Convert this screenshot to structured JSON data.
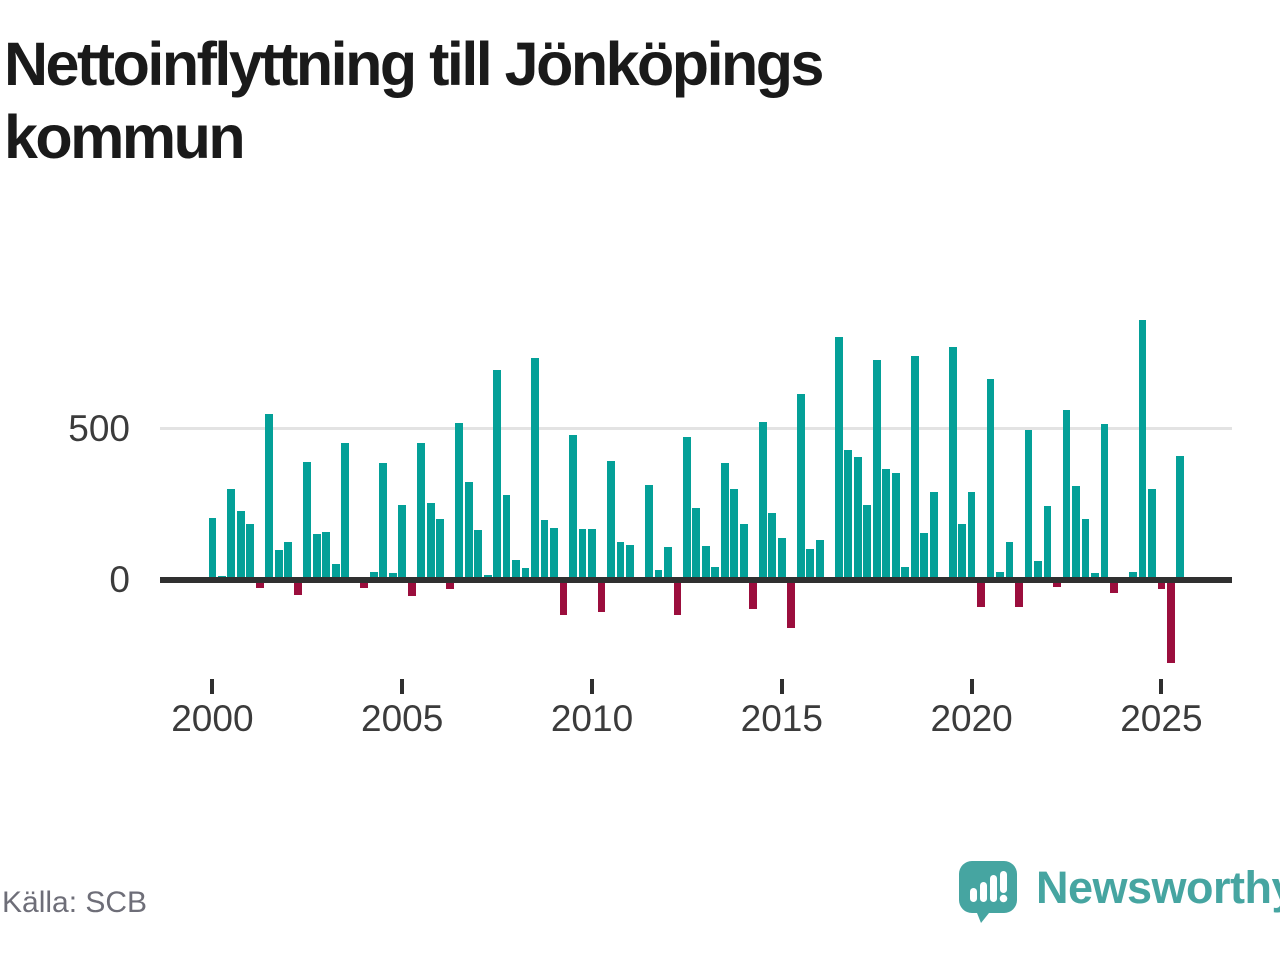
{
  "title": "Nettoinflyttning till Jönköpings kommun",
  "source_note": "Källa: SCB",
  "brand": {
    "name": "Newsworthy",
    "icon": "newsworthy-speech-bubble-bar-chart-icon"
  },
  "colors": {
    "positive_bar": "#04A098",
    "negative_bar": "#9B0E3D",
    "axis": "#303030",
    "gridline": "#E3E3E3",
    "title_text": "#1A1A1A",
    "tick_text": "#3B3B3B",
    "source_text": "#6E6E78",
    "brand_teal": "#46A5A1"
  },
  "chart_data": {
    "type": "bar",
    "title": "Nettoinflyttning till Jönköpings kommun",
    "frequency": "quarterly",
    "start_period": "2000Q1",
    "end_period": "2025Q3",
    "x_tick_labels": [
      "2000",
      "2005",
      "2010",
      "2015",
      "2020",
      "2025"
    ],
    "y_tick_labels": [
      "0",
      "500"
    ],
    "gridline_values": [
      500
    ],
    "ylim": [
      -300,
      900
    ],
    "grid": "horizontal-500-only",
    "legend": "none",
    "series": [
      {
        "name": "Nettoinflyttning",
        "values": [
          205,
          13,
          300,
          227,
          187,
          -26,
          550,
          100,
          127,
          -50,
          390,
          152,
          160,
          53,
          455,
          0,
          -25,
          28,
          386,
          24,
          248,
          -52,
          455,
          254,
          201,
          -31,
          520,
          325,
          165,
          17,
          695,
          281,
          66,
          39,
          734,
          199,
          171,
          -116,
          480,
          168,
          168,
          -105,
          394,
          127,
          115,
          0,
          315,
          33,
          110,
          -116,
          472,
          240,
          112,
          44,
          386,
          301,
          184,
          -97,
          522,
          221,
          140,
          -160,
          617,
          102,
          132,
          0,
          803,
          432,
          406,
          250,
          728,
          367,
          355,
          44,
          741,
          157,
          292,
          0,
          772,
          184,
          292,
          -90,
          664,
          25,
          125,
          -88,
          497,
          64,
          245,
          -24,
          563,
          311,
          201,
          22,
          516,
          -42,
          0,
          25,
          861,
          300,
          -31,
          -276,
          412
        ]
      }
    ]
  }
}
